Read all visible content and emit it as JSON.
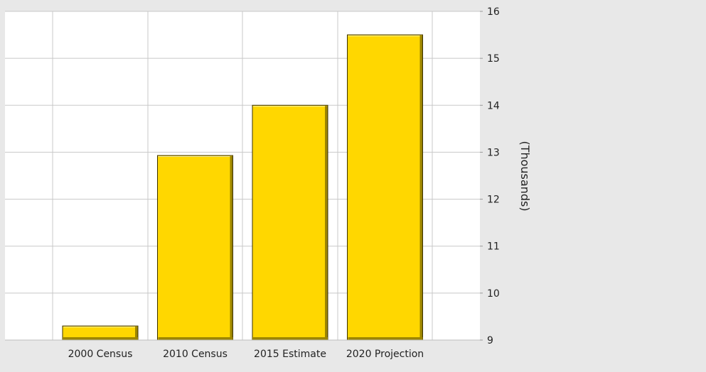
{
  "chart_data": {
    "type": "bar",
    "categories": [
      "2000 Census",
      "2010 Census",
      "2015 Estimate",
      "2020 Projection"
    ],
    "values": [
      9.3,
      12.93,
      14.0,
      15.5
    ],
    "title": "",
    "xlabel": "",
    "ylabel": "(Thousands)",
    "ylim": [
      9,
      16
    ],
    "yticks": [
      "9",
      "10",
      "11",
      "12",
      "13",
      "14",
      "15",
      "16"
    ],
    "y_axis_side": "right",
    "grid": true,
    "bar_color": "#FFD700",
    "bar_shadow_color": "#9C8500",
    "background_color": "#E8E8E8",
    "plot_background_color": "#FFFFFF",
    "grid_color": "#C8C8C8"
  }
}
